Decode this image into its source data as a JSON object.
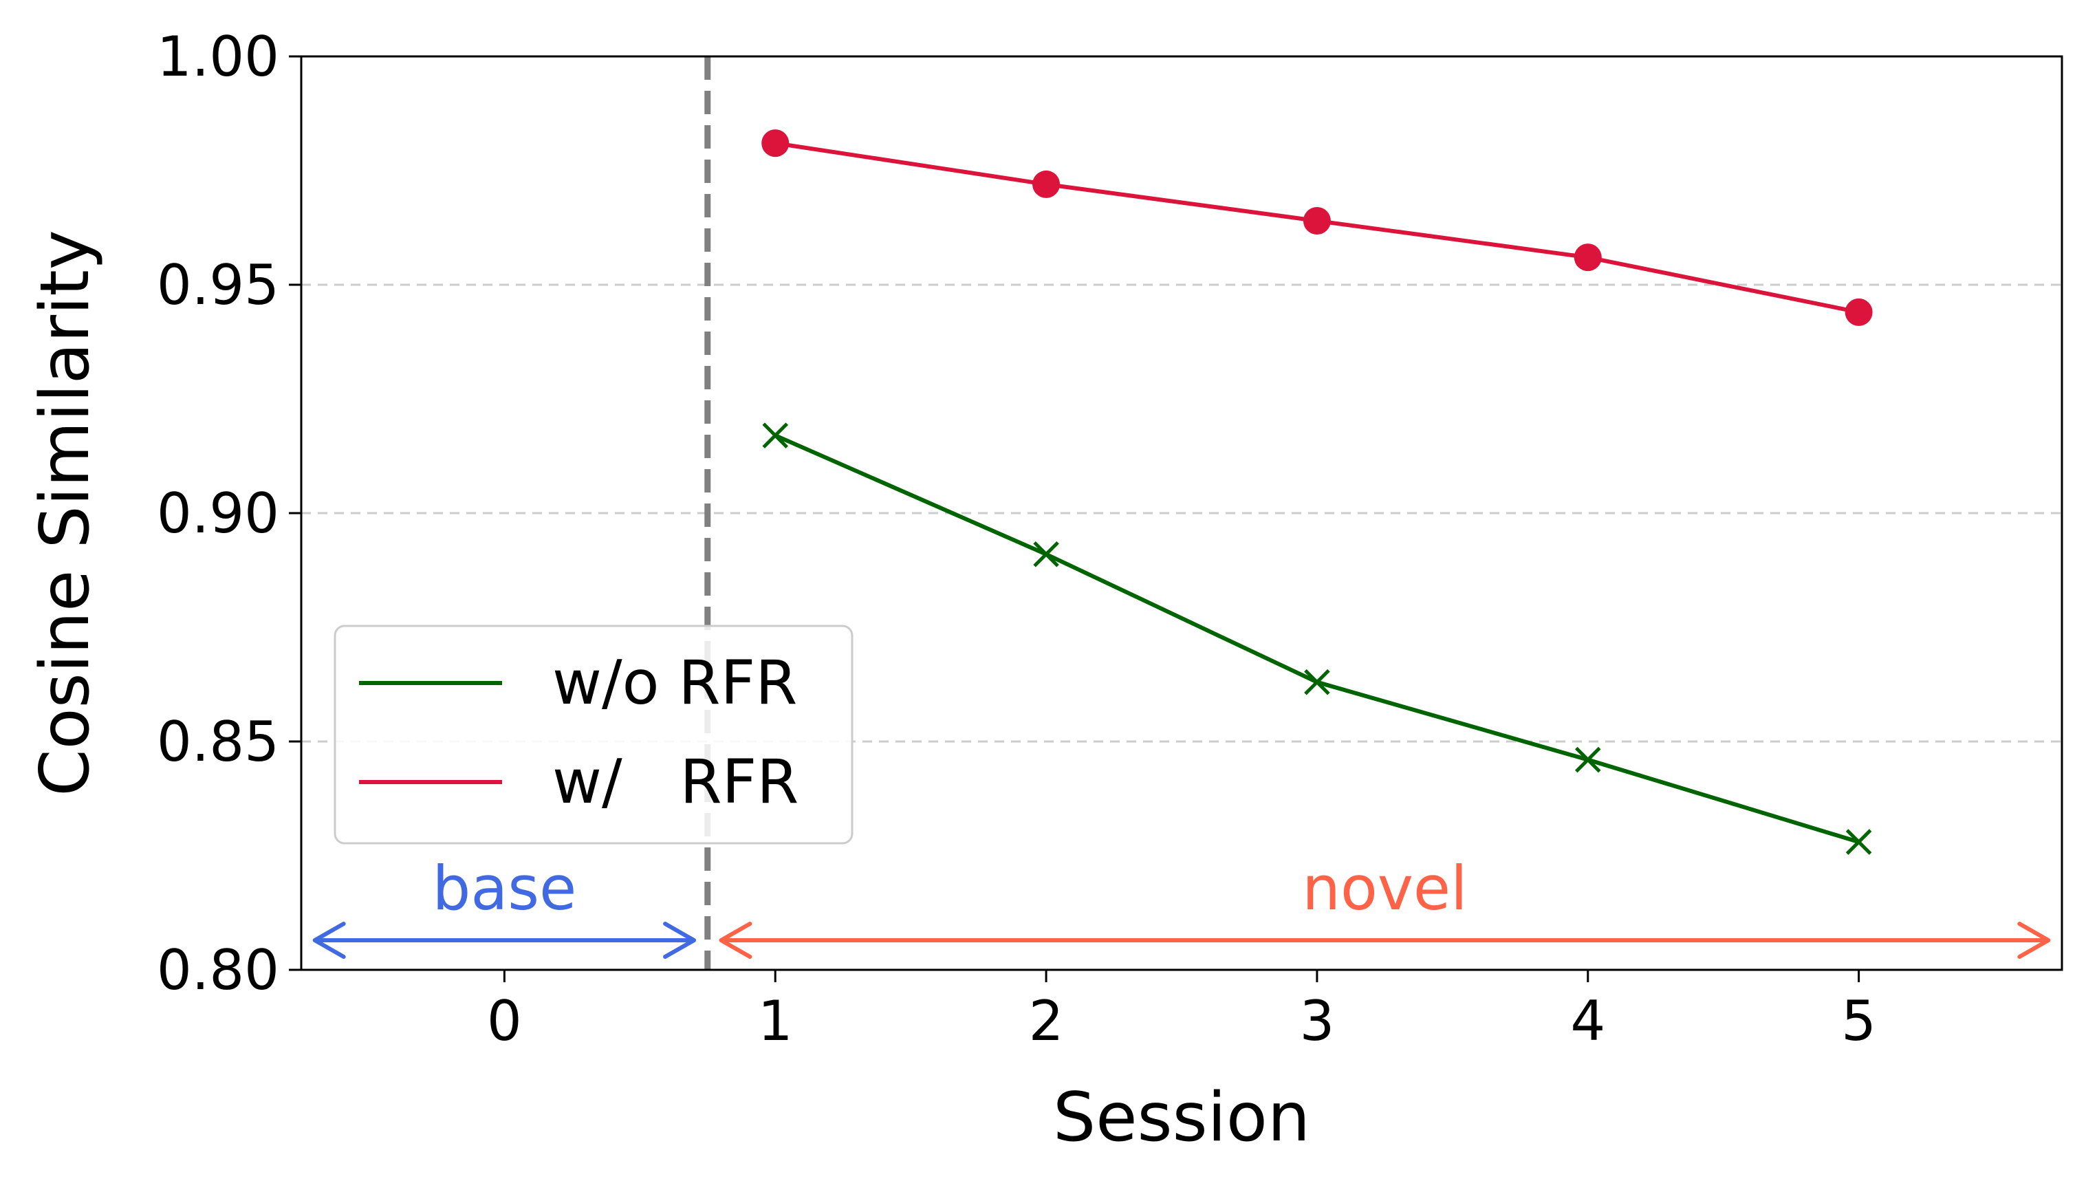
{
  "chart_data": {
    "type": "line",
    "title": "",
    "xlabel": "Session",
    "ylabel": "Cosine Similarity",
    "xlim": [
      -0.75,
      5.75
    ],
    "ylim": [
      0.8,
      1.0
    ],
    "x_ticks": [
      "0",
      "1",
      "2",
      "3",
      "4",
      "5"
    ],
    "y_ticks": [
      "0.80",
      "0.85",
      "0.90",
      "0.95",
      "1.00"
    ],
    "grid": "horizontal dashed",
    "legend_position": "lower-left",
    "base_novel_divider_x": 0.75,
    "series": [
      {
        "name": "w/o RFR",
        "color": "#006400",
        "marker": "x",
        "x": [
          1,
          2,
          3,
          4,
          5
        ],
        "y": [
          0.917,
          0.891,
          0.863,
          0.846,
          0.828
        ]
      },
      {
        "name": "w/   RFR",
        "color": "#DC143C",
        "marker": "o",
        "x": [
          1,
          2,
          3,
          4,
          5
        ],
        "y": [
          0.981,
          0.972,
          0.964,
          0.956,
          0.944
        ]
      }
    ],
    "annotations": [
      {
        "text": "base",
        "color": "#4169E1",
        "from_x": -0.7,
        "to_x": 0.7
      },
      {
        "text": "novel",
        "color": "#FF6347",
        "from_x": 0.8,
        "to_x": 5.7
      }
    ]
  }
}
